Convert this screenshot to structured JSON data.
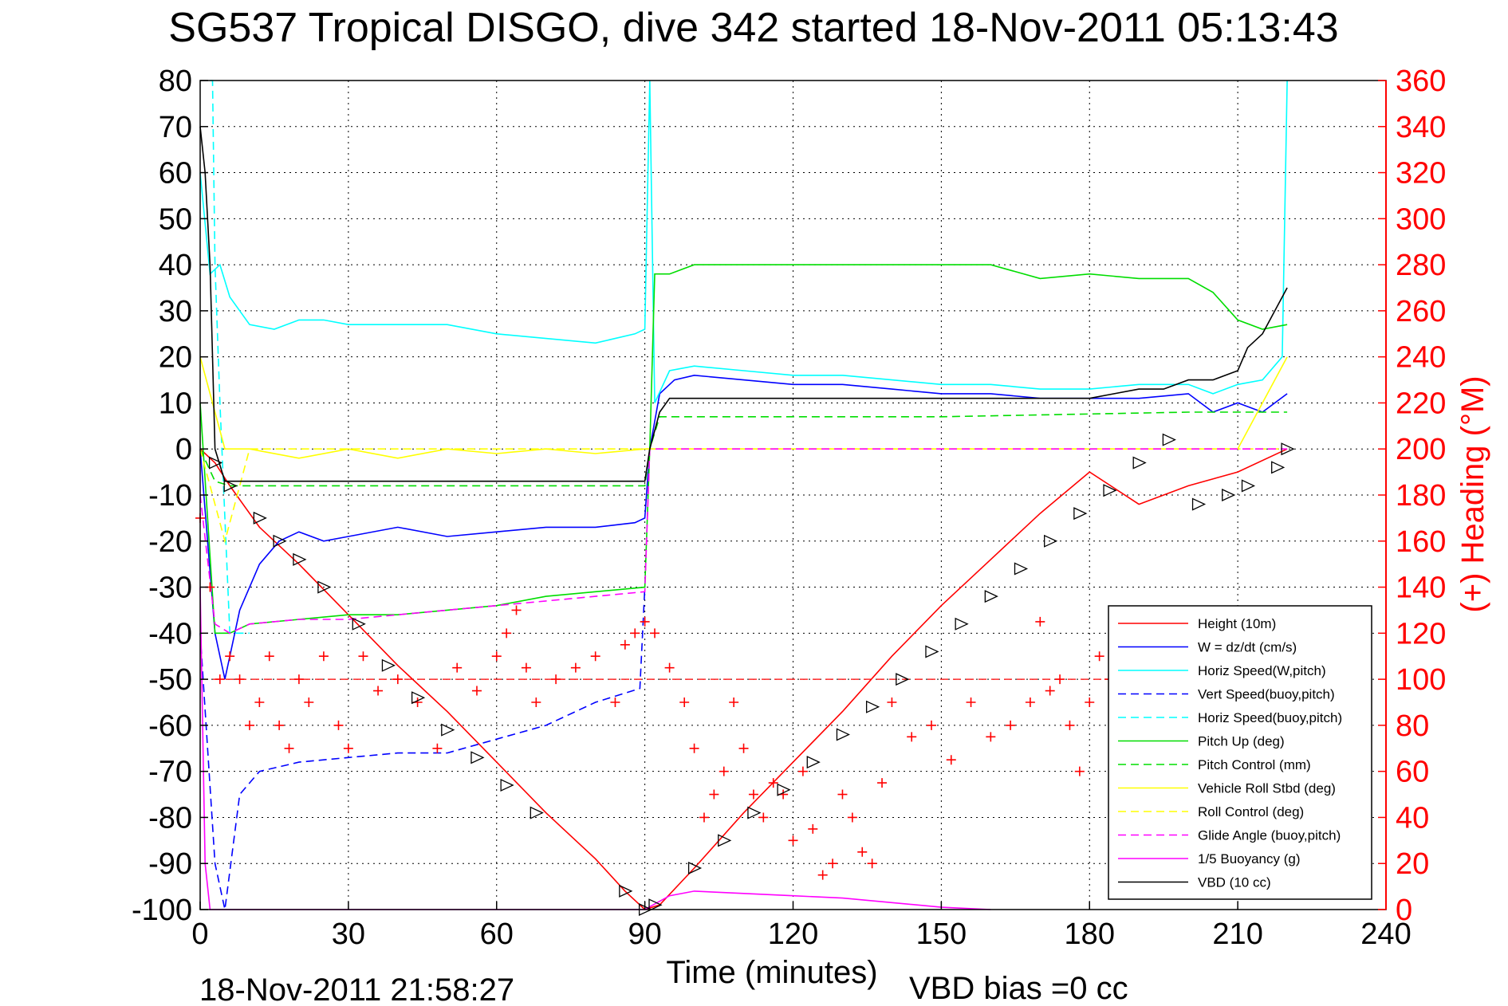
{
  "chart_data": {
    "type": "line",
    "title": "SG537 Tropical DISGO, dive 342 started 18-Nov-2011 05:13:43",
    "xlabel": "Time (minutes)",
    "ylabel": "",
    "y2label": "(+) Heading (°M)",
    "footer_left": "18-Nov-2011 21:58:27",
    "footer_right": "VBD bias =0 cc",
    "xlim": [
      0,
      240
    ],
    "ylim": [
      -100,
      80
    ],
    "y2lim": [
      0,
      360
    ],
    "xticks": [
      "0",
      "30",
      "60",
      "90",
      "120",
      "150",
      "180",
      "210",
      "240"
    ],
    "yticks": [
      "80",
      "70",
      "60",
      "50",
      "40",
      "30",
      "20",
      "10",
      "0",
      "-10",
      "-20",
      "-30",
      "-40",
      "-50",
      "-60",
      "-70",
      "-80",
      "-90",
      "-100"
    ],
    "y2ticks": [
      "360",
      "340",
      "320",
      "300",
      "280",
      "260",
      "240",
      "220",
      "200",
      "180",
      "160",
      "140",
      "120",
      "100",
      "80",
      "60",
      "40",
      "20",
      "0"
    ],
    "grid": true,
    "legend_position": "lower-right",
    "colors": {
      "height": "#ff0000",
      "w": "#0000ff",
      "horiz": "#00ffff",
      "pitch": "#00dd00",
      "roll": "#ffff00",
      "glide": "#ff00ff",
      "vbd": "#000000",
      "heading": "#ff0000"
    },
    "series": [
      {
        "name": "Height (10m)",
        "color": "#ff0000",
        "dash": "solid",
        "x": [
          0,
          3,
          6,
          12,
          20,
          30,
          40,
          50,
          60,
          70,
          80,
          86,
          90,
          93,
          100,
          110,
          120,
          130,
          140,
          150,
          160,
          170,
          180,
          190,
          200,
          210,
          220
        ],
        "y": [
          0,
          -3,
          -8,
          -17,
          -25,
          -36,
          -47,
          -57,
          -68,
          -79,
          -89,
          -96,
          -100,
          -99,
          -91,
          -79,
          -68,
          -57,
          -45,
          -34,
          -24,
          -14,
          -5,
          -12,
          -8,
          -5,
          0
        ]
      },
      {
        "name": "W = dz/dt (cm/s)",
        "color": "#0000ff",
        "dash": "solid",
        "x": [
          0,
          3,
          5,
          8,
          12,
          16,
          20,
          25,
          30,
          40,
          50,
          60,
          70,
          80,
          88,
          90,
          91,
          93,
          96,
          100,
          110,
          120,
          130,
          140,
          150,
          160,
          170,
          180,
          190,
          200,
          205,
          210,
          215,
          220
        ],
        "y": [
          0,
          -40,
          -50,
          -35,
          -25,
          -20,
          -18,
          -20,
          -19,
          -17,
          -19,
          -18,
          -17,
          -17,
          -16,
          -15,
          0,
          12,
          15,
          16,
          15,
          14,
          14,
          13,
          12,
          12,
          11,
          11,
          11,
          12,
          8,
          10,
          8,
          12
        ]
      },
      {
        "name": "Horiz Speed(W,pitch)",
        "color": "#00ffff",
        "dash": "solid",
        "x": [
          0,
          2,
          4,
          6,
          10,
          15,
          20,
          25,
          30,
          40,
          50,
          60,
          70,
          80,
          88,
          90,
          91,
          92,
          95,
          100,
          110,
          120,
          130,
          140,
          150,
          160,
          170,
          180,
          190,
          200,
          205,
          210,
          215,
          219,
          220
        ],
        "y": [
          60,
          38,
          40,
          33,
          27,
          26,
          28,
          28,
          27,
          27,
          27,
          25,
          24,
          23,
          25,
          26,
          80,
          10,
          17,
          18,
          17,
          16,
          16,
          15,
          14,
          14,
          13,
          13,
          14,
          14,
          12,
          14,
          15,
          20,
          80
        ]
      },
      {
        "name": "Vert Speed(buoy,pitch)",
        "color": "#0000ff",
        "dash": "dashed",
        "x": [
          0,
          3,
          5,
          8,
          12,
          20,
          30,
          40,
          50,
          60,
          70,
          80,
          89,
          90
        ],
        "y": [
          -40,
          -90,
          -100,
          -75,
          -70,
          -68,
          -67,
          -66,
          -66,
          -63,
          -60,
          -55,
          -52,
          -30
        ]
      },
      {
        "name": "Horiz Speed(buoy,pitch)",
        "color": "#00ffff",
        "dash": "dashed",
        "x": [
          2,
          2.5,
          3,
          4,
          6,
          10
        ],
        "y": [
          80,
          80,
          40,
          10,
          -40,
          -40
        ]
      },
      {
        "name": "Pitch Up (deg)",
        "color": "#00dd00",
        "dash": "solid",
        "x": [
          0,
          3,
          6,
          10,
          20,
          30,
          40,
          50,
          60,
          70,
          80,
          90,
          91,
          92,
          95,
          100,
          120,
          140,
          160,
          170,
          180,
          190,
          200,
          205,
          210,
          215,
          220
        ],
        "y": [
          10,
          -40,
          -40,
          -38,
          -37,
          -36,
          -36,
          -35,
          -34,
          -32,
          -31,
          -30,
          0,
          38,
          38,
          40,
          40,
          40,
          40,
          37,
          38,
          37,
          37,
          34,
          28,
          26,
          27
        ]
      },
      {
        "name": "Pitch Control (mm)",
        "color": "#00dd00",
        "dash": "dashed",
        "x": [
          0,
          3,
          6,
          30,
          60,
          90,
          91,
          93,
          100,
          150,
          200,
          220
        ],
        "y": [
          0,
          -7,
          -8,
          -8,
          -8,
          -8,
          0,
          7,
          7,
          7,
          8,
          8
        ]
      },
      {
        "name": "Vehicle Roll Stbd (deg)",
        "color": "#ffff00",
        "dash": "solid",
        "x": [
          0,
          5,
          10,
          20,
          30,
          40,
          50,
          60,
          70,
          80,
          90,
          91,
          100,
          110,
          120,
          130,
          140,
          150,
          160,
          170,
          180,
          190,
          200,
          210,
          220
        ],
        "y": [
          20,
          0,
          0,
          -2,
          0,
          -2,
          0,
          -1,
          0,
          -1,
          0,
          0,
          0,
          0,
          0,
          0,
          0,
          0,
          0,
          0,
          0,
          0,
          0,
          0,
          20
        ]
      },
      {
        "name": "Roll Control (deg)",
        "color": "#ffff00",
        "dash": "dashed",
        "x": [
          0,
          5,
          10,
          20,
          30,
          40,
          50,
          60,
          70,
          80,
          90,
          91,
          100,
          120,
          140,
          160,
          180,
          200,
          220
        ],
        "y": [
          0,
          -20,
          0,
          0,
          0,
          0,
          0,
          0,
          0,
          0,
          0,
          0,
          0,
          0,
          0,
          0,
          0,
          0,
          0
        ]
      },
      {
        "name": "Glide Angle (buoy,pitch)",
        "color": "#ff00ff",
        "dash": "dashed",
        "x": [
          0,
          3,
          6,
          10,
          20,
          30,
          40,
          50,
          60,
          70,
          80,
          90,
          91,
          95,
          120,
          150,
          180,
          210,
          220
        ],
        "y": [
          -10,
          -38,
          -40,
          -38,
          -37,
          -37,
          -36,
          -35,
          -34,
          -33,
          -32,
          -31,
          0,
          0,
          0,
          0,
          0,
          0,
          0
        ]
      },
      {
        "name": "1/5 Buoyancy (g)",
        "color": "#ff00ff",
        "dash": "solid",
        "x": [
          0,
          1,
          2,
          3,
          90,
          95,
          100,
          110,
          120,
          130,
          140,
          150,
          160
        ],
        "y": [
          -30,
          -90,
          -100,
          -100,
          -100,
          -97,
          -96,
          -96.5,
          -97,
          -97.5,
          -98.5,
          -99.5,
          -100
        ]
      },
      {
        "name": "VBD (10 cc)",
        "color": "#000000",
        "dash": "solid",
        "x": [
          0,
          1,
          2,
          3,
          5,
          30,
          60,
          90,
          91,
          93,
          95,
          120,
          150,
          180,
          185,
          190,
          195,
          200,
          205,
          210,
          212,
          215,
          218,
          220
        ],
        "y": [
          70,
          60,
          40,
          0,
          -7,
          -7,
          -7,
          -7,
          0,
          8,
          11,
          11,
          11,
          11,
          12,
          13,
          13,
          15,
          15,
          17,
          22,
          25,
          31,
          35
        ]
      }
    ],
    "heading_marks": {
      "name": "Heading",
      "color": "#ff0000",
      "marker": "+",
      "x": [
        0,
        2,
        4,
        6,
        8,
        10,
        12,
        14,
        16,
        18,
        20,
        22,
        25,
        28,
        30,
        33,
        36,
        40,
        44,
        48,
        52,
        56,
        60,
        62,
        64,
        66,
        68,
        72,
        76,
        80,
        84,
        86,
        88,
        90,
        92,
        95,
        98,
        100,
        102,
        104,
        106,
        108,
        110,
        112,
        114,
        116,
        118,
        120,
        122,
        124,
        126,
        128,
        130,
        132,
        134,
        136,
        138,
        140,
        144,
        148,
        152,
        156,
        160,
        164,
        168,
        170,
        172,
        174,
        176,
        178,
        180,
        182,
        184
      ],
      "y": [
        170,
        140,
        100,
        110,
        100,
        80,
        90,
        110,
        80,
        70,
        100,
        90,
        110,
        80,
        70,
        110,
        95,
        100,
        90,
        70,
        105,
        95,
        110,
        120,
        130,
        105,
        90,
        100,
        105,
        110,
        90,
        115,
        120,
        125,
        120,
        105,
        90,
        70,
        40,
        50,
        60,
        90,
        70,
        50,
        40,
        55,
        50,
        30,
        60,
        35,
        15,
        20,
        50,
        40,
        25,
        20,
        55,
        90,
        75,
        80,
        65,
        90,
        75,
        80,
        90,
        125,
        95,
        100,
        80,
        60,
        90,
        110,
        100
      ],
      "ref_line": 100
    },
    "markers": {
      "name": "Height markers",
      "shape": "triangle",
      "x": [
        3,
        6,
        12,
        16,
        20,
        25,
        32,
        38,
        44,
        50,
        56,
        62,
        68,
        86,
        90,
        92,
        100,
        106,
        112,
        118,
        124,
        130,
        136,
        142,
        148,
        154,
        160,
        166,
        172,
        178,
        184,
        190,
        196,
        202,
        208,
        212,
        218,
        220
      ],
      "y": [
        -3,
        -8,
        -15,
        -20,
        -24,
        -30,
        -38,
        -47,
        -54,
        -61,
        -67,
        -73,
        -79,
        -96,
        -100,
        -99,
        -91,
        -85,
        -79,
        -74,
        -68,
        -62,
        -56,
        -50,
        -44,
        -38,
        -32,
        -26,
        -20,
        -14,
        -9,
        -3,
        2,
        -12,
        -10,
        -8,
        -4,
        0
      ]
    }
  },
  "legend": [
    {
      "label": "Height (10m)",
      "color": "#ff0000",
      "dash": "solid"
    },
    {
      "label": "W = dz/dt (cm/s)",
      "color": "#0000ff",
      "dash": "solid"
    },
    {
      "label": "Horiz Speed(W,pitch)",
      "color": "#00ffff",
      "dash": "solid"
    },
    {
      "label": "Vert Speed(buoy,pitch)",
      "color": "#0000ff",
      "dash": "dashed"
    },
    {
      "label": "Horiz Speed(buoy,pitch)",
      "color": "#00ffff",
      "dash": "dashed"
    },
    {
      "label": "Pitch Up (deg)",
      "color": "#00dd00",
      "dash": "solid"
    },
    {
      "label": "Pitch Control (mm)",
      "color": "#00dd00",
      "dash": "dashed"
    },
    {
      "label": "Vehicle Roll Stbd (deg)",
      "color": "#ffff00",
      "dash": "solid"
    },
    {
      "label": "Roll Control (deg)",
      "color": "#ffff00",
      "dash": "dashed"
    },
    {
      "label": "Glide Angle (buoy,pitch)",
      "color": "#ff00ff",
      "dash": "dashed"
    },
    {
      "label": "1/5 Buoyancy (g)",
      "color": "#ff00ff",
      "dash": "solid"
    },
    {
      "label": "VBD (10 cc)",
      "color": "#000000",
      "dash": "solid"
    }
  ]
}
